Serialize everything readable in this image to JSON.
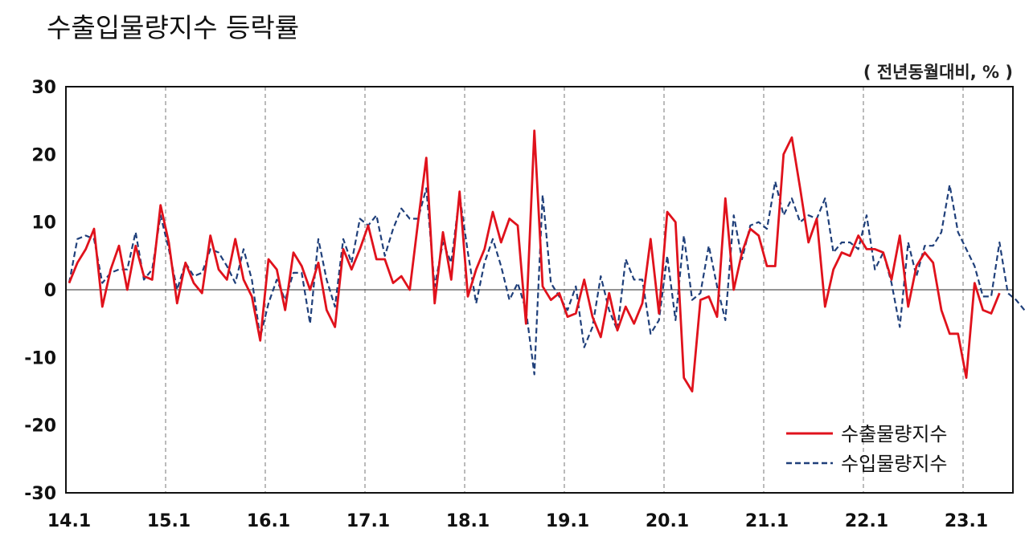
{
  "title": "수출입물량지수 등락률",
  "unit_label": "( 전년동월대비, % )",
  "chart_data": {
    "type": "line",
    "title": "수출입물량지수 등락률",
    "ylim": [
      -30,
      30
    ],
    "y_ticks": [
      30,
      20,
      10,
      0,
      -10,
      -20,
      -30
    ],
    "x_tick_labels": [
      "14.1",
      "15.1",
      "16.1",
      "17.1",
      "18.1",
      "19.1",
      "20.1",
      "21.1",
      "22.1",
      "23.1"
    ],
    "x_start": "2014-01",
    "x_end": "2023-06",
    "legend_position": "bottom-right",
    "series": [
      {
        "name": "수출물량지수",
        "color": "#e0121c",
        "style": "solid",
        "values": [
          1,
          4,
          6,
          9,
          -2.5,
          3,
          6.5,
          0,
          6.5,
          2,
          1.5,
          12.5,
          7,
          -2,
          4,
          1,
          -0.5,
          8,
          3,
          1.5,
          7.5,
          1.5,
          -1,
          -7.5,
          4.5,
          3,
          -3,
          5.5,
          3.5,
          0,
          4,
          -3,
          -5.5,
          6,
          3,
          6,
          9.5,
          4.5,
          4.5,
          1,
          2,
          0,
          10,
          19.5,
          -2,
          8.5,
          1.5,
          14.5,
          -1,
          3,
          6,
          11.5,
          7,
          10.5,
          9.5,
          -5,
          23.5,
          0.5,
          -1.5,
          -0.5,
          -4,
          -3.5,
          1.5,
          -4,
          -7,
          -0.5,
          -6,
          -2.5,
          -5,
          -2,
          7.5,
          -3.5,
          11.5,
          10,
          -13,
          -15,
          -1.5,
          -1,
          -4,
          13.5,
          0,
          5.5,
          9,
          8,
          3.5,
          3.5,
          20,
          22.5,
          15,
          7,
          10.5,
          -2.5,
          3,
          5.5,
          5,
          8,
          6,
          6,
          5.5,
          1.5,
          8,
          -2.5,
          3.5,
          5.5,
          4,
          -3,
          -6.5,
          -6.5,
          -13,
          1,
          -3,
          -3.5,
          -0.5
        ]
      },
      {
        "name": "수입물량지수",
        "color": "#1f3f7a",
        "style": "dashed",
        "values": [
          1,
          7.5,
          8,
          7.5,
          1,
          2.5,
          3,
          3,
          8.5,
          1.5,
          3,
          11,
          6,
          0,
          4,
          2,
          2.5,
          6,
          5.5,
          3.5,
          1,
          6,
          1.5,
          -7,
          -2,
          1.5,
          -1.5,
          2.5,
          2.5,
          -5,
          7.5,
          1.5,
          -2.5,
          7.5,
          4,
          10.5,
          9.5,
          11,
          5,
          9,
          12,
          10.5,
          10.5,
          15,
          0.5,
          7,
          4,
          14,
          5.5,
          -2,
          4,
          7.5,
          3.5,
          -1.5,
          1,
          -3,
          -12.5,
          14,
          1,
          -1,
          -3,
          0.5,
          -8.5,
          -5.5,
          2,
          -3,
          -6,
          4.5,
          1.5,
          1.5,
          -6.5,
          -4.5,
          5,
          -4.5,
          8,
          -1.5,
          -0.5,
          6.5,
          0.5,
          -4.5,
          11,
          4.5,
          9.5,
          10,
          9,
          16,
          11,
          13.5,
          10,
          11,
          10.5,
          13.5,
          5.5,
          7,
          7,
          6,
          11,
          3,
          5.5,
          1,
          -5.5,
          7,
          2,
          6.5,
          6.5,
          8.5,
          15.5,
          8.5,
          6,
          3.5,
          -1,
          -1,
          7,
          -0.5,
          -1.5,
          -3
        ]
      }
    ]
  }
}
